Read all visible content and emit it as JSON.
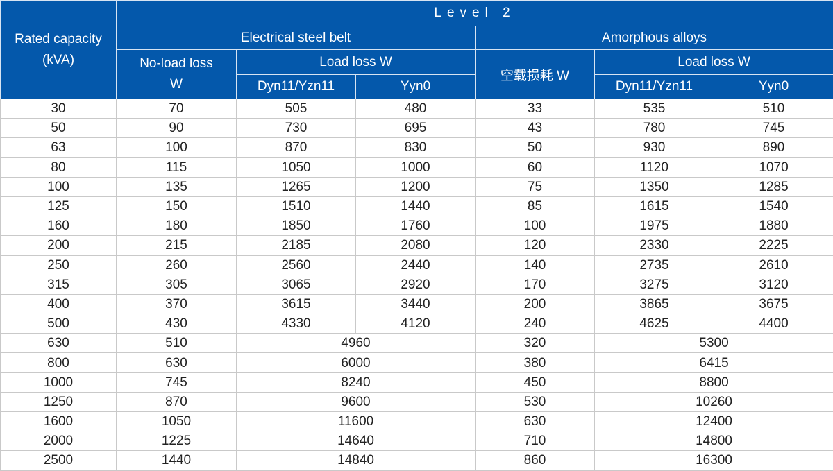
{
  "header": {
    "rated_capacity": "Rated capacity",
    "rated_capacity_unit": "(kVA)",
    "level": "Level 2",
    "steel_group": "Electrical steel belt",
    "amorphous_group": "Amorphous alloys",
    "steel_no_load": "No-load loss",
    "steel_no_load_unit": "W",
    "steel_load_loss": "Load loss W",
    "amorphous_no_load": "空载损耗 W",
    "amorphous_load_loss": "Load loss W",
    "dyn": "Dyn11/Yzn11",
    "yyn": "Yyn0"
  },
  "colors": {
    "header_bg": "#0458ab",
    "header_text": "#ffffff"
  },
  "rows": [
    [
      "30",
      "70",
      "505",
      "480",
      "33",
      "535",
      "510"
    ],
    [
      "50",
      "90",
      "730",
      "695",
      "43",
      "780",
      "745"
    ],
    [
      "63",
      "100",
      "870",
      "830",
      "50",
      "930",
      "890"
    ],
    [
      "80",
      "115",
      "1050",
      "1000",
      "60",
      "1120",
      "1070"
    ],
    [
      "100",
      "135",
      "1265",
      "1200",
      "75",
      "1350",
      "1285"
    ],
    [
      "125",
      "150",
      "1510",
      "1440",
      "85",
      "1615",
      "1540"
    ],
    [
      "160",
      "180",
      "1850",
      "1760",
      "100",
      "1975",
      "1880"
    ],
    [
      "200",
      "215",
      "2185",
      "2080",
      "120",
      "2330",
      "2225"
    ],
    [
      "250",
      "260",
      "2560",
      "2440",
      "140",
      "2735",
      "2610"
    ],
    [
      "315",
      "305",
      "3065",
      "2920",
      "170",
      "3275",
      "3120"
    ],
    [
      "400",
      "370",
      "3615",
      "3440",
      "200",
      "3865",
      "3675"
    ],
    [
      "500",
      "430",
      "4330",
      "4120",
      "240",
      "4625",
      "4400"
    ]
  ],
  "merged_rows": [
    [
      "630",
      "510",
      "4960",
      "320",
      "5300"
    ],
    [
      "800",
      "630",
      "6000",
      "380",
      "6415"
    ],
    [
      "1000",
      "745",
      "8240",
      "450",
      "8800"
    ],
    [
      "1250",
      "870",
      "9600",
      "530",
      "10260"
    ],
    [
      "1600",
      "1050",
      "11600",
      "630",
      "12400"
    ],
    [
      "2000",
      "1225",
      "14640",
      "710",
      "14800"
    ],
    [
      "2500",
      "1440",
      "14840",
      "860",
      "16300"
    ]
  ]
}
